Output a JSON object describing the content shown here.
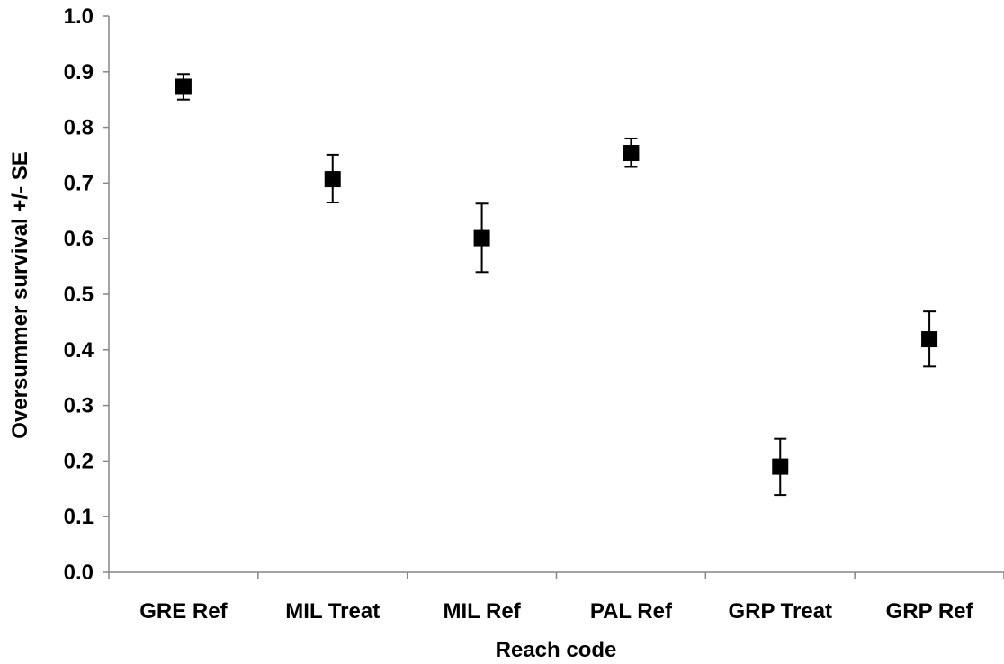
{
  "chart_data": {
    "type": "scatter",
    "title": "",
    "xlabel": "Reach code",
    "ylabel": "Oversummer survival +/- SE",
    "categories": [
      "GRE Ref",
      "MIL Treat",
      "MIL Ref",
      "PAL Ref",
      "GRP Treat",
      "GRP Ref"
    ],
    "values": [
      0.873,
      0.707,
      0.601,
      0.754,
      0.19,
      0.419
    ],
    "error_low": [
      0.85,
      0.665,
      0.54,
      0.729,
      0.139,
      0.37
    ],
    "error_high": [
      0.896,
      0.751,
      0.663,
      0.78,
      0.24,
      0.469
    ],
    "ylim": [
      0.0,
      1.0
    ],
    "ytick_step": 0.1,
    "yticks": [
      "0.0",
      "0.1",
      "0.2",
      "0.3",
      "0.4",
      "0.5",
      "0.6",
      "0.7",
      "0.8",
      "0.9",
      "1.0"
    ],
    "grid": false,
    "legend": "none",
    "marker": "square",
    "marker_color": "#000000",
    "axis_color": "#868686"
  }
}
